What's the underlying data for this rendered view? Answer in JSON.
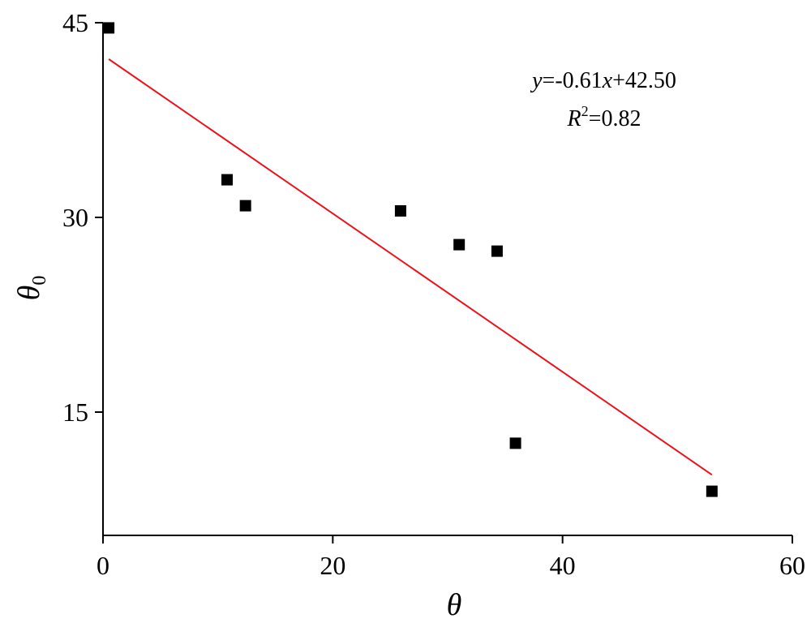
{
  "chart_data": {
    "type": "scatter",
    "title": "",
    "xlabel": "θ",
    "ylabel_main": "θ",
    "ylabel_sub": "0",
    "xlim": [
      0,
      60
    ],
    "ylim": [
      5.5,
      45
    ],
    "x_ticks": [
      0,
      20,
      40,
      60
    ],
    "y_ticks": [
      15,
      30,
      45
    ],
    "grid": false,
    "legend": "none",
    "points": [
      {
        "x": 0.5,
        "y": 44.6
      },
      {
        "x": 10.8,
        "y": 32.9
      },
      {
        "x": 12.4,
        "y": 30.9
      },
      {
        "x": 25.9,
        "y": 30.5
      },
      {
        "x": 31.0,
        "y": 27.9
      },
      {
        "x": 34.3,
        "y": 27.4
      },
      {
        "x": 35.9,
        "y": 12.6
      },
      {
        "x": 53.0,
        "y": 8.9
      }
    ],
    "fit_line": {
      "x_start": 0.5,
      "x_end": 53.0,
      "slope": -0.61,
      "intercept": 42.5,
      "color": "#e8141c"
    },
    "annotation": {
      "equation_y": "y",
      "equation_rest": "=-0.61",
      "equation_x": "x",
      "equation_tail": "+42.50",
      "r_label": "R",
      "r_sup": "2",
      "r_value": "=0.82"
    },
    "marker_color": "#000000"
  }
}
